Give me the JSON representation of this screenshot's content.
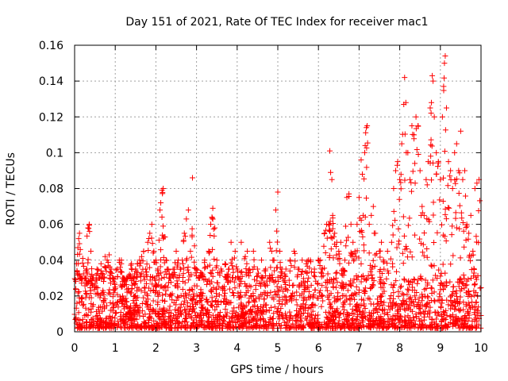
{
  "chart_data": {
    "type": "scatter",
    "title": "Day 151 of 2021, Rate Of TEC Index for receiver mac1",
    "xlabel": "GPS time / hours",
    "ylabel": "ROTI / TECUs",
    "xlim": [
      0,
      10
    ],
    "ylim": [
      0,
      0.16
    ],
    "xticks": [
      0,
      1,
      2,
      3,
      4,
      5,
      6,
      7,
      8,
      9,
      10
    ],
    "xtick_labels": [
      "0",
      "1",
      "2",
      "3",
      "4",
      "5",
      "6",
      "7",
      "8",
      "9",
      "10"
    ],
    "yticks": [
      0,
      0.02,
      0.04,
      0.06,
      0.08,
      0.1,
      0.12,
      0.14,
      0.16
    ],
    "ytick_labels": [
      "0",
      "0.02",
      "0.04",
      "0.06",
      "0.08",
      "0.1",
      "0.12",
      "0.14",
      "0.16"
    ],
    "grid": true,
    "marker": "plus",
    "color": "#ff0000",
    "series": [
      {
        "name": "ROTI",
        "points": [
          [
            0.03,
            0.024
          ],
          [
            0.05,
            0.038
          ],
          [
            0.08,
            0.047
          ],
          [
            0.1,
            0.052
          ],
          [
            0.12,
            0.055
          ],
          [
            0.15,
            0.03
          ],
          [
            0.2,
            0.041
          ],
          [
            0.25,
            0.03
          ],
          [
            0.3,
            0.035
          ],
          [
            0.33,
            0.058
          ],
          [
            0.36,
            0.06
          ],
          [
            0.4,
            0.045
          ],
          [
            0.45,
            0.03
          ],
          [
            0.5,
            0.025
          ],
          [
            0.55,
            0.035
          ],
          [
            0.6,
            0.03
          ],
          [
            0.65,
            0.038
          ],
          [
            0.7,
            0.032
          ],
          [
            0.75,
            0.042
          ],
          [
            0.8,
            0.04
          ],
          [
            0.85,
            0.043
          ],
          [
            0.9,
            0.035
          ],
          [
            0.95,
            0.03
          ],
          [
            1.0,
            0.025
          ],
          [
            1.05,
            0.035
          ],
          [
            1.1,
            0.04
          ],
          [
            1.15,
            0.04
          ],
          [
            1.2,
            0.03
          ],
          [
            1.25,
            0.028
          ],
          [
            1.3,
            0.03
          ],
          [
            1.35,
            0.032
          ],
          [
            1.4,
            0.038
          ],
          [
            1.45,
            0.03
          ],
          [
            1.5,
            0.035
          ],
          [
            1.55,
            0.038
          ],
          [
            1.6,
            0.04
          ],
          [
            1.65,
            0.042
          ],
          [
            1.7,
            0.045
          ],
          [
            1.75,
            0.035
          ],
          [
            1.8,
            0.05
          ],
          [
            1.85,
            0.055
          ],
          [
            1.9,
            0.06
          ],
          [
            1.95,
            0.045
          ],
          [
            2.0,
            0.04
          ],
          [
            2.05,
            0.035
          ],
          [
            2.1,
            0.068
          ],
          [
            2.12,
            0.072
          ],
          [
            2.15,
            0.079
          ],
          [
            2.18,
            0.08
          ],
          [
            2.2,
            0.053
          ],
          [
            2.25,
            0.04
          ],
          [
            2.3,
            0.035
          ],
          [
            2.35,
            0.03
          ],
          [
            2.4,
            0.032
          ],
          [
            2.45,
            0.035
          ],
          [
            2.5,
            0.045
          ],
          [
            2.55,
            0.04
          ],
          [
            2.6,
            0.035
          ],
          [
            2.65,
            0.04
          ],
          [
            2.7,
            0.055
          ],
          [
            2.75,
            0.063
          ],
          [
            2.8,
            0.068
          ],
          [
            2.85,
            0.045
          ],
          [
            2.9,
            0.086
          ],
          [
            2.95,
            0.048
          ],
          [
            3.0,
            0.035
          ],
          [
            3.05,
            0.03
          ],
          [
            3.1,
            0.033
          ],
          [
            3.15,
            0.032
          ],
          [
            3.2,
            0.04
          ],
          [
            3.3,
            0.045
          ],
          [
            3.35,
            0.06
          ],
          [
            3.38,
            0.064
          ],
          [
            3.4,
            0.069
          ],
          [
            3.45,
            0.058
          ],
          [
            3.5,
            0.04
          ],
          [
            3.6,
            0.035
          ],
          [
            3.7,
            0.038
          ],
          [
            3.75,
            0.032
          ],
          [
            3.8,
            0.035
          ],
          [
            3.85,
            0.05
          ],
          [
            3.9,
            0.035
          ],
          [
            3.95,
            0.045
          ],
          [
            4.0,
            0.035
          ],
          [
            4.1,
            0.05
          ],
          [
            4.2,
            0.042
          ],
          [
            4.25,
            0.045
          ],
          [
            4.3,
            0.035
          ],
          [
            4.4,
            0.045
          ],
          [
            4.5,
            0.035
          ],
          [
            4.6,
            0.04
          ],
          [
            4.7,
            0.035
          ],
          [
            4.8,
            0.05
          ],
          [
            4.85,
            0.045
          ],
          [
            4.9,
            0.04
          ],
          [
            4.95,
            0.068
          ],
          [
            5.0,
            0.078
          ],
          [
            5.05,
            0.045
          ],
          [
            5.1,
            0.035
          ],
          [
            5.2,
            0.035
          ],
          [
            5.3,
            0.04
          ],
          [
            5.4,
            0.045
          ],
          [
            5.5,
            0.035
          ],
          [
            5.6,
            0.04
          ],
          [
            5.7,
            0.038
          ],
          [
            5.75,
            0.04
          ],
          [
            5.8,
            0.04
          ],
          [
            5.9,
            0.035
          ],
          [
            6.0,
            0.04
          ],
          [
            6.05,
            0.04
          ],
          [
            6.1,
            0.035
          ],
          [
            6.15,
            0.055
          ],
          [
            6.2,
            0.06
          ],
          [
            6.25,
            0.06
          ],
          [
            6.28,
            0.101
          ],
          [
            6.3,
            0.089
          ],
          [
            6.33,
            0.085
          ],
          [
            6.35,
            0.065
          ],
          [
            6.4,
            0.055
          ],
          [
            6.45,
            0.05
          ],
          [
            6.5,
            0.045
          ],
          [
            6.55,
            0.05
          ],
          [
            6.6,
            0.035
          ],
          [
            6.65,
            0.04
          ],
          [
            6.7,
            0.075
          ],
          [
            6.75,
            0.077
          ],
          [
            6.8,
            0.06
          ],
          [
            6.85,
            0.05
          ],
          [
            6.9,
            0.045
          ],
          [
            6.95,
            0.06
          ],
          [
            7.0,
            0.075
          ],
          [
            7.05,
            0.096
          ],
          [
            7.08,
            0.088
          ],
          [
            7.1,
            0.065
          ],
          [
            7.15,
            0.104
          ],
          [
            7.18,
            0.114
          ],
          [
            7.2,
            0.115
          ],
          [
            7.25,
            0.06
          ],
          [
            7.3,
            0.065
          ],
          [
            7.35,
            0.07
          ],
          [
            7.4,
            0.055
          ],
          [
            7.5,
            0.045
          ],
          [
            7.55,
            0.05
          ],
          [
            7.6,
            0.04
          ],
          [
            7.7,
            0.045
          ],
          [
            7.8,
            0.05
          ],
          [
            7.85,
            0.08
          ],
          [
            7.9,
            0.09
          ],
          [
            7.95,
            0.095
          ],
          [
            8.0,
            0.085
          ],
          [
            8.05,
            0.105
          ],
          [
            8.1,
            0.127
          ],
          [
            8.12,
            0.142
          ],
          [
            8.15,
            0.128
          ],
          [
            8.2,
            0.1
          ],
          [
            8.25,
            0.085
          ],
          [
            8.3,
            0.115
          ],
          [
            8.35,
            0.11
          ],
          [
            8.4,
            0.12
          ],
          [
            8.45,
            0.115
          ],
          [
            8.5,
            0.09
          ],
          [
            8.55,
            0.07
          ],
          [
            8.6,
            0.065
          ],
          [
            8.65,
            0.085
          ],
          [
            8.7,
            0.095
          ],
          [
            8.75,
            0.125
          ],
          [
            8.78,
            0.128
          ],
          [
            8.8,
            0.143
          ],
          [
            8.82,
            0.14
          ],
          [
            8.85,
            0.12
          ],
          [
            8.9,
            0.1
          ],
          [
            8.95,
            0.095
          ],
          [
            9.0,
            0.085
          ],
          [
            9.05,
            0.12
          ],
          [
            9.08,
            0.137
          ],
          [
            9.1,
            0.15
          ],
          [
            9.12,
            0.154
          ],
          [
            9.15,
            0.125
          ],
          [
            9.2,
            0.095
          ],
          [
            9.25,
            0.09
          ],
          [
            9.3,
            0.08
          ],
          [
            9.35,
            0.1
          ],
          [
            9.4,
            0.105
          ],
          [
            9.45,
            0.09
          ],
          [
            9.5,
            0.112
          ],
          [
            9.55,
            0.085
          ],
          [
            9.6,
            0.09
          ],
          [
            9.65,
            0.06
          ],
          [
            9.7,
            0.055
          ],
          [
            9.75,
            0.065
          ],
          [
            9.8,
            0.045
          ],
          [
            9.85,
            0.08
          ],
          [
            9.9,
            0.083
          ],
          [
            9.95,
            0.085
          ]
        ],
        "baseline_band": {
          "description": "dense noise floor of points between these ROTI values across the whole time range",
          "low": 0.002,
          "high": 0.03,
          "density_per_hour": 220
        }
      }
    ]
  }
}
